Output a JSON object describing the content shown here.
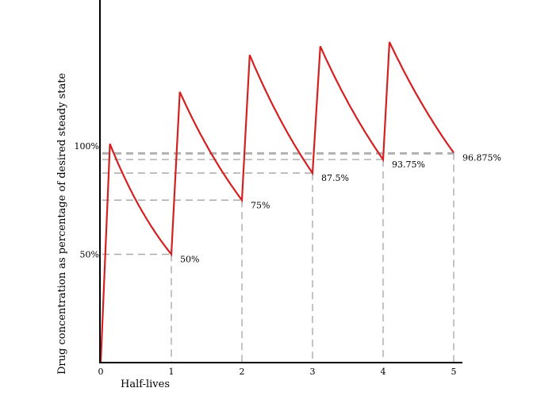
{
  "chart_data": {
    "type": "line",
    "title": "",
    "xlabel": "Half-lives",
    "ylabel": "Drug concentration as percentage of desired steady state",
    "xlim": [
      0,
      5
    ],
    "ylim": [
      0,
      100
    ],
    "grid": false,
    "x_ticks": [
      {
        "value": 0,
        "label": "0"
      },
      {
        "value": 1,
        "label": "1"
      },
      {
        "value": 2,
        "label": "2"
      },
      {
        "value": 3,
        "label": "3"
      },
      {
        "value": 4,
        "label": "4"
      },
      {
        "value": 5,
        "label": "5"
      }
    ],
    "y_ticks": [
      {
        "value": 50,
        "label": "50%"
      },
      {
        "value": 100,
        "label": "100%"
      }
    ],
    "series": [
      {
        "color": "#d42020",
        "points": [
          {
            "x": 0,
            "y": 0
          },
          {
            "x": 0.13,
            "y": 101
          },
          {
            "x": 1.0,
            "y": 50
          },
          {
            "x": 1.12,
            "y": 125
          },
          {
            "x": 2.0,
            "y": 75
          },
          {
            "x": 2.11,
            "y": 142
          },
          {
            "x": 3.0,
            "y": 87.5
          },
          {
            "x": 3.11,
            "y": 146
          },
          {
            "x": 4.0,
            "y": 93.75
          },
          {
            "x": 4.09,
            "y": 148
          },
          {
            "x": 5.0,
            "y": 96.875
          }
        ]
      }
    ],
    "annotations": [
      {
        "x": 1,
        "y": 50,
        "label": "50%"
      },
      {
        "x": 2,
        "y": 75,
        "label": "75%"
      },
      {
        "x": 3,
        "y": 87.5,
        "label": "87.5%"
      },
      {
        "x": 4,
        "y": 93.75,
        "label": "93.75%"
      },
      {
        "x": 5,
        "y": 96.875,
        "label": "96.875%"
      }
    ],
    "reference_color": "#aaaaaa"
  }
}
